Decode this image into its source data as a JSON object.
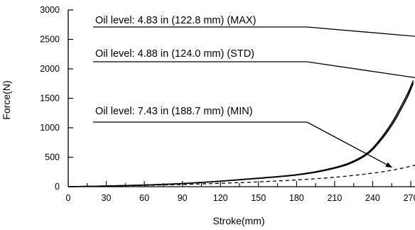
{
  "chart_data": {
    "type": "line",
    "xlabel": "Stroke(mm)",
    "ylabel": "Force(N)",
    "xlim": [
      0,
      270
    ],
    "ylim": [
      0,
      3000
    ],
    "x_ticks": [
      "0",
      "30",
      "60",
      "90",
      "120",
      "150",
      "180",
      "210",
      "240",
      "270"
    ],
    "y_ticks": [
      "0",
      "500",
      "1000",
      "1500",
      "2000",
      "2500",
      "3000"
    ],
    "grid": false,
    "series": [
      {
        "name": "Oil level: 4.83 in (122.8 mm) (MAX)",
        "style": "solid",
        "x": [
          0,
          30,
          60,
          90,
          120,
          150,
          180,
          200,
          220,
          235,
          245,
          255,
          262,
          268,
          272
        ],
        "y": [
          0,
          12,
          28,
          55,
          95,
          145,
          205,
          275,
          390,
          560,
          780,
          1080,
          1350,
          1600,
          1800
        ]
      },
      {
        "name": "Oil level: 4.88 in (124.0 mm) (STD)",
        "style": "solid",
        "x": [
          0,
          30,
          60,
          90,
          120,
          150,
          180,
          200,
          220,
          235,
          245,
          255,
          262,
          268,
          272
        ],
        "y": [
          0,
          12,
          28,
          53,
          92,
          140,
          198,
          265,
          375,
          540,
          750,
          1040,
          1300,
          1550,
          1760
        ]
      },
      {
        "name": "Oil level: 7.43 in (188.7 mm) (MIN)",
        "style": "dashed",
        "x": [
          0,
          30,
          60,
          90,
          120,
          150,
          180,
          210,
          240,
          260,
          280
        ],
        "y": [
          0,
          10,
          22,
          38,
          58,
          82,
          115,
          160,
          230,
          300,
          400
        ]
      }
    ],
    "annotations": [
      {
        "text": "Oil level: 4.83 in (122.8 mm) (MAX)",
        "target_x": 280,
        "target_y": 2540
      },
      {
        "text": "Oil level: 4.88 in (124.0 mm) (STD)",
        "target_x": 280,
        "target_y": 1830
      },
      {
        "text": "Oil level: 7.43 in (188.7 mm) (MIN)",
        "target_x": 255,
        "target_y": 330
      }
    ]
  }
}
